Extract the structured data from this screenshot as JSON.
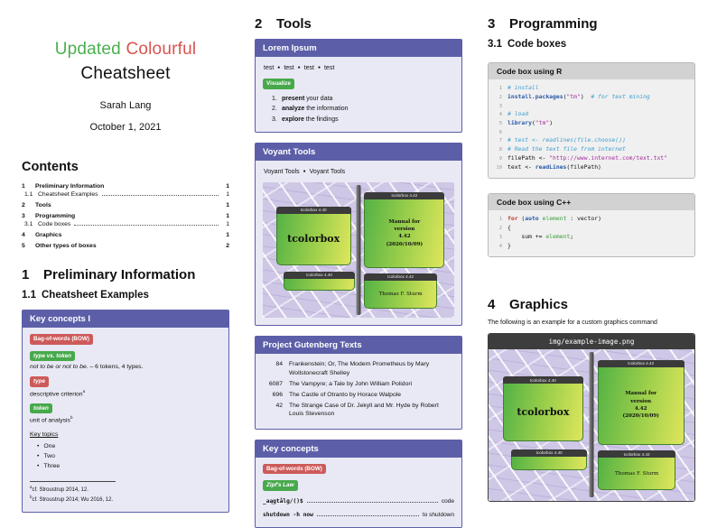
{
  "header": {
    "title_word1": "Updated",
    "title_word2": "Colourful",
    "title_word3": "Cheatsheet",
    "author": "Sarah Lang",
    "date": "October 1, 2021",
    "accent_green": "#4caf50",
    "accent_red": "#d9534f"
  },
  "contents": {
    "heading": "Contents",
    "entries": [
      {
        "num": "1",
        "label": "Preliminary Information",
        "page": "1"
      },
      {
        "num": "1.1",
        "label": "Cheatsheet Examples",
        "page": "1"
      },
      {
        "num": "2",
        "label": "Tools",
        "page": "1"
      },
      {
        "num": "3",
        "label": "Programming",
        "page": "1"
      },
      {
        "num": "3.1",
        "label": "Code boxes",
        "page": "1"
      },
      {
        "num": "4",
        "label": "Graphics",
        "page": "1"
      },
      {
        "num": "5",
        "label": "Other types of boxes",
        "page": "2"
      }
    ]
  },
  "sections": {
    "s1": {
      "num": "1",
      "title": "Preliminary Information"
    },
    "s1_1": {
      "num": "1.1",
      "title": "Cheatsheet Examples"
    },
    "s2": {
      "num": "2",
      "title": "Tools"
    },
    "s3": {
      "num": "3",
      "title": "Programming"
    },
    "s3_1": {
      "num": "3.1",
      "title": "Code boxes"
    },
    "s4": {
      "num": "4",
      "title": "Graphics"
    }
  },
  "key_concepts_1": {
    "title": "Key concepts I",
    "bow_badge": "Bag-of-words (BOW)",
    "type_token_badge": "type vs. token",
    "type_token_example": "not to be or not to be.",
    "type_token_rest": " – 6 tokens, 4 types.",
    "type_badge": "type",
    "type_desc": "descriptive criterion",
    "type_fn_mark": "a",
    "token_badge": "token",
    "token_desc": "unit of analysis",
    "token_fn_mark": "b",
    "key_topics_label": "Key topics",
    "topics": [
      "One",
      "Two",
      "Three"
    ],
    "footnotes": [
      {
        "mark": "a",
        "text": "cf. Stroustrup 2014, 12."
      },
      {
        "mark": "b",
        "text": "cf. Stroustrup 2014; Wu 2016, 12."
      }
    ]
  },
  "lorem_box": {
    "title": "Lorem Ipsum",
    "test_row": [
      "test",
      "test",
      "test",
      "test"
    ],
    "visualize_badge": "Visualize",
    "steps": [
      {
        "n": "1.",
        "bold": "present",
        "rest": " your data"
      },
      {
        "n": "2.",
        "bold": "analyze",
        "rest": " the information"
      },
      {
        "n": "3.",
        "bold": "explore",
        "rest": " the findings"
      }
    ]
  },
  "voyant_box": {
    "title": "Voyant Tools",
    "links": [
      "Voyant Tools",
      "Voyant Tools"
    ]
  },
  "gutenberg_box": {
    "title": "Project Gutenberg Texts",
    "rows": [
      {
        "id": "84",
        "title": "Frankenstein; Or, The Modern Prometheus by Mary Wollstonecraft Shelley"
      },
      {
        "id": "6087",
        "title": "The Vampyre; a Tale by John William Polidori"
      },
      {
        "id": "696",
        "title": "The Castle of Otranto by Horace Walpole"
      },
      {
        "id": "42",
        "title": "The Strange Case of Dr. Jekyll and Mr. Hyde by Robert Louis Stevenson"
      }
    ]
  },
  "key_concepts_2": {
    "title": "Key concepts",
    "bow_badge": "Bag-of-words (BOW)",
    "zipf_badge": "Zipf's Law",
    "desc_rows": [
      {
        "term": "_aągtålg/()$",
        "desc": "code"
      },
      {
        "term": "shutdown -h now",
        "desc": "to shutdown"
      }
    ]
  },
  "r_box": {
    "title": "Code box using R",
    "lines": [
      [
        {
          "t": "# install",
          "c": "com"
        }
      ],
      [
        {
          "t": "install.packages",
          "c": "fn"
        },
        {
          "t": "(",
          "c": ""
        },
        {
          "t": "\"tm\"",
          "c": "str"
        },
        {
          "t": ")",
          "c": ""
        },
        {
          "t": "  # for text mining",
          "c": "com"
        }
      ],
      [],
      [
        {
          "t": "# load",
          "c": "com"
        }
      ],
      [
        {
          "t": "library",
          "c": "fn"
        },
        {
          "t": "(",
          "c": ""
        },
        {
          "t": "\"tm\"",
          "c": "str"
        },
        {
          "t": ")",
          "c": ""
        }
      ],
      [],
      [
        {
          "t": "# test <- readlines(file.choose())",
          "c": "com"
        }
      ],
      [
        {
          "t": "# Read the text file from internet",
          "c": "com"
        }
      ],
      [
        {
          "t": "filePath <- ",
          "c": ""
        },
        {
          "t": "\"http://www.internet.com/text.txt\"",
          "c": "str"
        }
      ],
      [
        {
          "t": "text <- ",
          "c": ""
        },
        {
          "t": "readLines",
          "c": "fn"
        },
        {
          "t": "(filePath)",
          "c": ""
        }
      ]
    ]
  },
  "cpp_box": {
    "title": "Code box using C++",
    "lines": [
      [
        {
          "t": "for",
          "c": "kw"
        },
        {
          "t": " (",
          "c": ""
        },
        {
          "t": "auto",
          "c": "kw2"
        },
        {
          "t": " ",
          "c": ""
        },
        {
          "t": "element",
          "c": "id"
        },
        {
          "t": " : vector)",
          "c": ""
        }
      ],
      [
        {
          "t": "{",
          "c": ""
        }
      ],
      [
        {
          "t": "    sum += ",
          "c": ""
        },
        {
          "t": "element",
          "c": "id"
        },
        {
          "t": ";",
          "c": ""
        }
      ],
      [
        {
          "t": "}",
          "c": ""
        }
      ]
    ]
  },
  "graphics": {
    "intro": "The following is an example for a custom graphics command",
    "image_title": "img/example-image.png"
  },
  "sign_image": {
    "tl_header": "tcolorbox 4.40",
    "tl_label": "tcolorbox",
    "tr_header": "tcolorbox 4.42",
    "tr_text": "Manual for\nversion\n4.42\n(2020/10/09)",
    "bl_header": "tcolorbox 4.40",
    "br_header": "tcolorbox 4.42",
    "br_text": "Thomas F. Sturm"
  },
  "colors": {
    "box_purple": "#5c5fa8",
    "box_body": "#e9e9f5",
    "badge_red": "#cd5a5a",
    "badge_green": "#47a94c"
  }
}
